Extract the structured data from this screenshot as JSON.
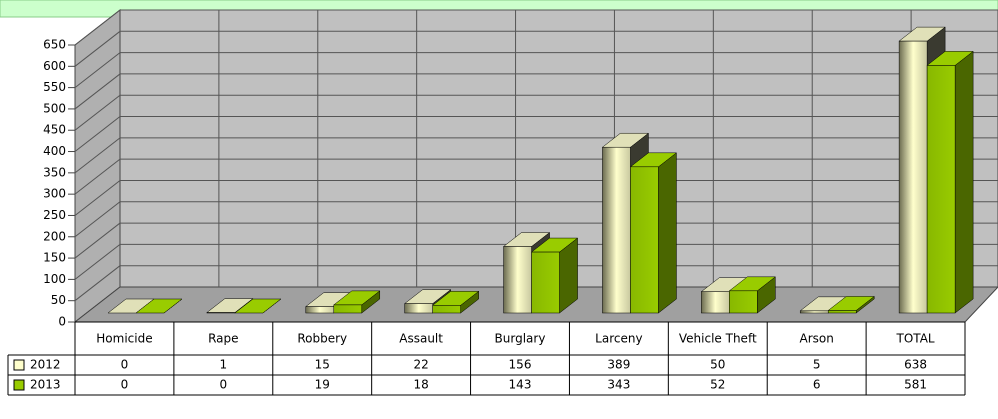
{
  "chart_data": {
    "type": "bar3d",
    "categories": [
      "Homicide",
      "Rape",
      "Robbery",
      "Assault",
      "Burglary",
      "Larceny",
      "Vehicle Theft",
      "Arson",
      "TOTAL"
    ],
    "series": [
      {
        "name": "2012",
        "color": "#ffffcc",
        "values": [
          0,
          1,
          15,
          22,
          156,
          389,
          50,
          5,
          638
        ]
      },
      {
        "name": "2013",
        "color": "#99cc00",
        "values": [
          0,
          0,
          19,
          18,
          143,
          343,
          52,
          6,
          581
        ]
      }
    ],
    "ylim": [
      0,
      650
    ],
    "yticks": [
      0,
      50,
      100,
      150,
      200,
      250,
      300,
      350,
      400,
      450,
      500,
      550,
      600,
      650
    ],
    "grid": true
  }
}
